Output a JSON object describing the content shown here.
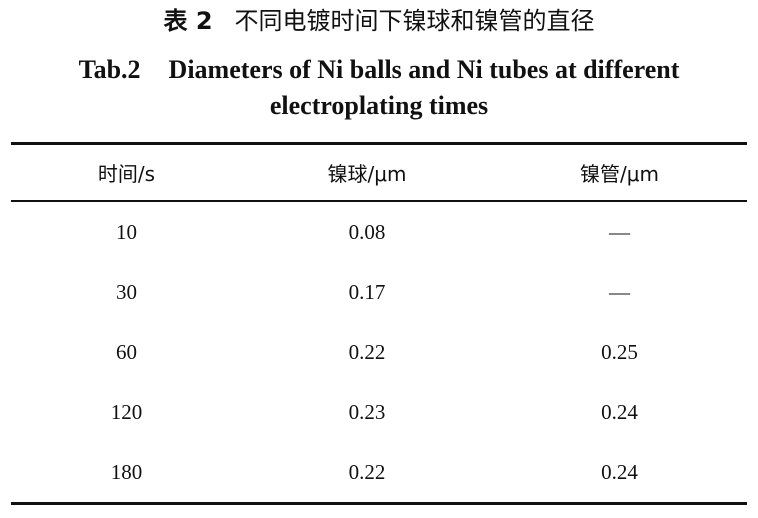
{
  "caption": {
    "cn_label": "表 2",
    "cn_title": "不同电镀时间下镍球和镍管的直径",
    "en_label": "Tab.2",
    "en_title_line1": "Diameters of Ni balls and Ni tubes at different",
    "en_title_line2": "electroplating times"
  },
  "table": {
    "headers": [
      "时间/s",
      "镍球/μm",
      "镍管/μm"
    ],
    "rows": [
      [
        "10",
        "0.08",
        "—"
      ],
      [
        "30",
        "0.17",
        "—"
      ],
      [
        "60",
        "0.22",
        "0.25"
      ],
      [
        "120",
        "0.23",
        "0.24"
      ],
      [
        "180",
        "0.22",
        "0.24"
      ]
    ]
  }
}
